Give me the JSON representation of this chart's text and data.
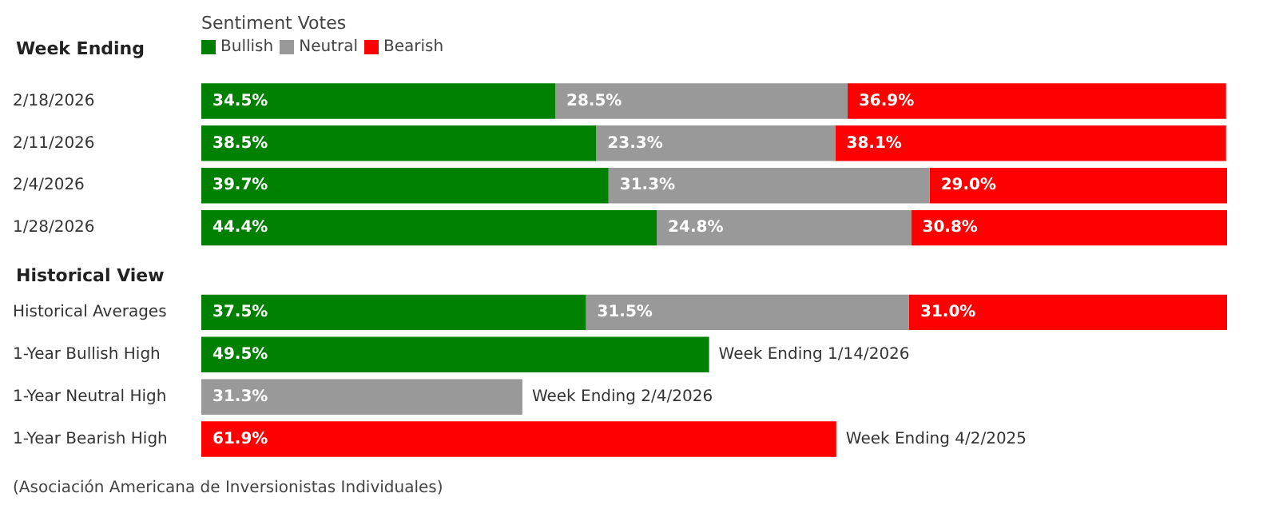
{
  "chart_data": {
    "type": "bar",
    "orientation": "horizontal",
    "stacked": true,
    "legend_title": "Sentiment Votes",
    "legend": "top left",
    "grid": false,
    "tick_labels": "y",
    "categories": [
      "2/18/2026",
      "2/11/2026",
      "2/4/2026",
      "1/28/2026",
      null,
      "Historical Averages",
      "1-Year Bullish High",
      "1-Year Neutral High",
      "1-Year Bearish High"
    ],
    "xlim": [
      0,
      100
    ],
    "series": [
      {
        "name": "Bullish",
        "color": "#008000",
        "values": [
          34.5,
          38.5,
          39.7,
          44.4,
          null,
          37.5,
          49.5,
          null,
          null
        ],
        "value_labels": [
          "34.5%",
          "38.5%",
          "39.7%",
          "44.4%",
          null,
          "37.5%",
          "49.5%",
          null,
          null
        ]
      },
      {
        "name": "Neutral",
        "color": "#999999",
        "values": [
          28.5,
          23.3,
          31.3,
          24.8,
          null,
          31.5,
          null,
          31.3,
          null
        ],
        "value_labels": [
          "28.5%",
          "23.3%",
          "31.3%",
          "24.8%",
          null,
          "31.5%",
          null,
          "31.3%",
          null
        ]
      },
      {
        "name": "Bearish",
        "color": "#ff0000",
        "values": [
          36.9,
          38.1,
          29.0,
          30.8,
          null,
          31.0,
          null,
          null,
          61.9
        ],
        "value_labels": [
          "36.9%",
          "38.1%",
          "29.0%",
          "30.8%",
          null,
          "31.0%",
          null,
          null,
          "61.9%"
        ]
      }
    ],
    "annotations": [
      "Week Ending",
      "Historical View",
      "(Asociación Americana de Inversionistas Individuales)",
      {
        "text": "Week Ending 1/14/2026",
        "x": 49.5,
        "y": "1-Year Bullish High"
      },
      {
        "text": "Week Ending 2/4/2026",
        "x": 31.3,
        "y": "1-Year Neutral High"
      },
      {
        "text": "Week Ending 4/2/2025",
        "x": 61.9,
        "y": "1-Year Bearish High"
      }
    ]
  }
}
